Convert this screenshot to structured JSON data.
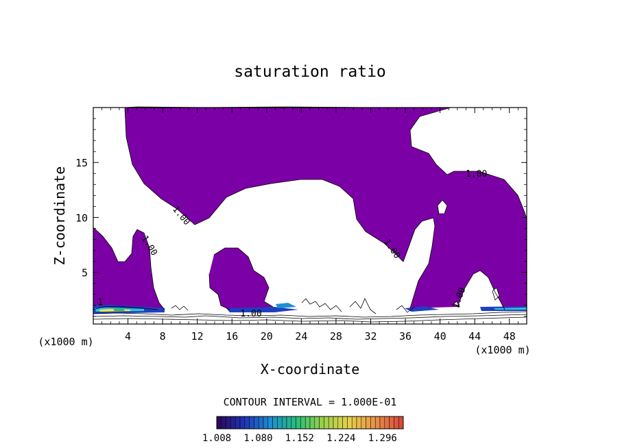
{
  "chart_data": {
    "type": "contour",
    "title": "saturation ratio",
    "xlabel": "X-coordinate",
    "ylabel": "Z-coordinate",
    "x_unit_label": "(x1000 m)",
    "x_unit_label_right": "(x1000 m)",
    "xlim": [
      0,
      50
    ],
    "ylim": [
      0.3,
      20
    ],
    "x_ticks": [
      4,
      8,
      12,
      16,
      20,
      24,
      28,
      32,
      36,
      40,
      44,
      48
    ],
    "x_tick_labels": [
      "4",
      "8",
      "12",
      "16",
      "20",
      "24",
      "28",
      "32",
      "36",
      "40",
      "44",
      "48"
    ],
    "y_ticks": [
      5,
      10,
      15
    ],
    "y_tick_labels": [
      "5",
      "10",
      "15"
    ],
    "contour_labels": [
      {
        "text": "1.00",
        "x": 9.9,
        "z": 10.0,
        "angle": 50
      },
      {
        "text": "1.00",
        "x": 6.2,
        "z": 7.3,
        "angle": 58
      },
      {
        "text": "1.00",
        "x": 34.2,
        "z": 7.0,
        "angle": 55
      },
      {
        "text": "1.00",
        "x": 44.2,
        "z": 13.7,
        "angle": 0
      },
      {
        "text": "1.00",
        "x": 42.5,
        "z": 2.6,
        "angle": -70
      },
      {
        "text": "1.00",
        "x": 18.2,
        "z": 1.0,
        "angle": 0
      },
      {
        "text": "1",
        "x": 0.8,
        "z": 2.0,
        "angle": 0
      }
    ],
    "fill_color_saturated": "#7b00a6",
    "contour_interval_text": "CONTOUR INTERVAL = 1.000E-01",
    "colorbar": {
      "labels": [
        "1.008",
        "1.080",
        "1.152",
        "1.224",
        "1.296"
      ],
      "min": 1.008,
      "max": 1.332,
      "colors": [
        "#2a0a5e",
        "#2036b8",
        "#1f8fd0",
        "#27c07a",
        "#9bd14a",
        "#e6d14a",
        "#e8924a",
        "#d64a3a"
      ]
    }
  }
}
